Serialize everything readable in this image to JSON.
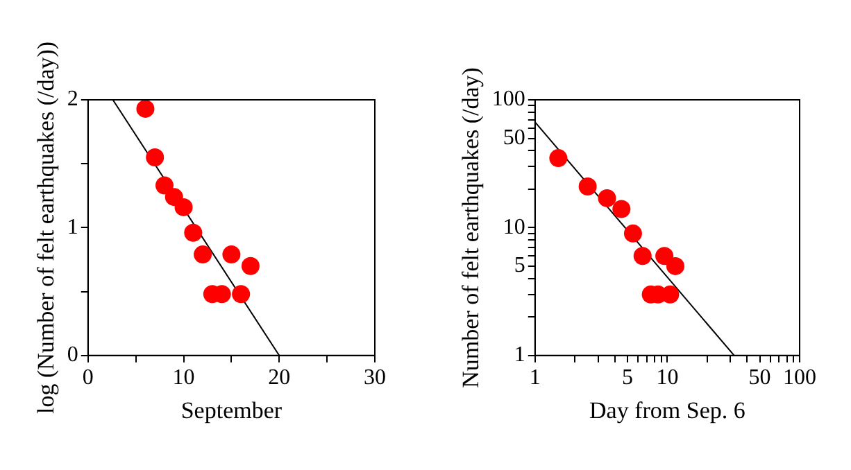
{
  "chart_data": [
    {
      "type": "scatter",
      "xlabel": "September",
      "ylabel": "log (Number of felt earthquakes (/day))",
      "xlim": [
        0,
        30
      ],
      "xticks": [
        0,
        {
          "value": 5,
          "label": null
        },
        10,
        {
          "value": 15,
          "label": null
        },
        20,
        {
          "value": 25,
          "label": null
        },
        30
      ],
      "ylim": [
        0,
        2
      ],
      "yticks": [
        0,
        {
          "value": 0.5,
          "label": null
        },
        1,
        {
          "value": 1.5,
          "label": null
        },
        2
      ],
      "grid": false,
      "legend": false,
      "series": [
        {
          "type": "scatter",
          "color": "#ff0000",
          "marker": "circle",
          "x": [
            6,
            7,
            8,
            9,
            10,
            11,
            12,
            13,
            14,
            15,
            16,
            17
          ],
          "values": [
            1.93,
            1.55,
            1.33,
            1.24,
            1.16,
            0.96,
            0.79,
            0.48,
            0.48,
            0.79,
            0.48,
            0.7
          ]
        },
        {
          "type": "line",
          "color": "#000000",
          "marker": "none",
          "line_style": "solid",
          "x": [
            2.6,
            20
          ],
          "values": [
            2,
            0
          ]
        }
      ]
    },
    {
      "type": "scatter",
      "xlabel": "Day from Sep. 6",
      "ylabel": "Number of felt earthquakes (/day)",
      "log": "xy",
      "xlim": [
        1,
        100
      ],
      "xticks": [
        1,
        {
          "value": 2,
          "label": null
        },
        {
          "value": 3,
          "label": null
        },
        {
          "value": 4,
          "label": null
        },
        5,
        {
          "value": 6,
          "label": null
        },
        {
          "value": 7,
          "label": null
        },
        {
          "value": 8,
          "label": null
        },
        {
          "value": 9,
          "label": null
        },
        10,
        {
          "value": 20,
          "label": null
        },
        {
          "value": 30,
          "label": null
        },
        {
          "value": 40,
          "label": null
        },
        50,
        {
          "value": 60,
          "label": null
        },
        {
          "value": 70,
          "label": null
        },
        {
          "value": 80,
          "label": null
        },
        {
          "value": 90,
          "label": null
        },
        100
      ],
      "ylim": [
        1,
        100
      ],
      "yticks": [
        1,
        {
          "value": 2,
          "label": null
        },
        {
          "value": 3,
          "label": null
        },
        {
          "value": 4,
          "label": null
        },
        5,
        {
          "value": 6,
          "label": null
        },
        {
          "value": 7,
          "label": null
        },
        {
          "value": 8,
          "label": null
        },
        {
          "value": 9,
          "label": null
        },
        10,
        {
          "value": 20,
          "label": null
        },
        {
          "value": 30,
          "label": null
        },
        {
          "value": 40,
          "label": null
        },
        50,
        {
          "value": 60,
          "label": null
        },
        {
          "value": 70,
          "label": null
        },
        {
          "value": 80,
          "label": null
        },
        {
          "value": 90,
          "label": null
        },
        100
      ],
      "grid": false,
      "legend": false,
      "series": [
        {
          "type": "scatter",
          "color": "#ff0000",
          "marker": "circle",
          "x": [
            1.5,
            2.5,
            3.5,
            4.5,
            5.5,
            6.5,
            7.5,
            8.5,
            9.5,
            10.5,
            11.5
          ],
          "values": [
            35,
            21,
            17,
            14,
            9,
            6,
            3,
            3,
            6,
            3,
            5
          ]
        },
        {
          "type": "line",
          "color": "#000000",
          "marker": "none",
          "line_style": "solid",
          "x": [
            1,
            32
          ],
          "values": [
            67,
            1
          ]
        }
      ]
    }
  ]
}
